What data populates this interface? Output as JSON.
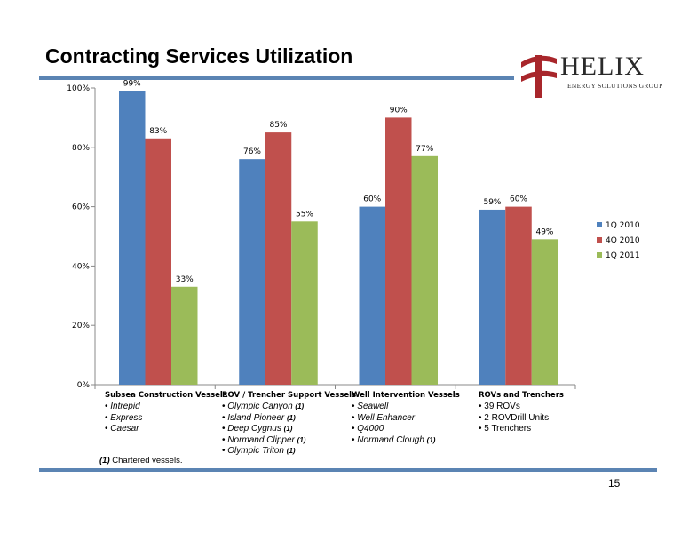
{
  "slide": {
    "title": "Contracting Services Utilization",
    "page_number": "15",
    "footnote_marker": "(1)",
    "footnote_text": "Chartered vessels.",
    "logo": {
      "word": "HELIX",
      "tagline": "ENERGY SOLUTIONS GROUP"
    }
  },
  "colors": {
    "accent_rule": "#5b84b3",
    "logo_red": "#a8262b"
  },
  "chart_data": {
    "type": "bar",
    "title": "",
    "xlabel": "",
    "ylabel": "",
    "ylim": [
      0,
      100
    ],
    "yticks": [
      "0%",
      "20%",
      "40%",
      "60%",
      "80%",
      "100%"
    ],
    "grid": false,
    "legend_position": "right",
    "categories": [
      "Subsea Construction Vessels",
      "ROV / Trencher Support Vessels",
      "Well Intervention Vessels",
      "ROVs and Trenchers"
    ],
    "series": [
      {
        "name": "1Q 2010",
        "color": "#4f81bd",
        "values": [
          99,
          76,
          60,
          59
        ],
        "labels": [
          "99%",
          "76%",
          "60%",
          "59%"
        ]
      },
      {
        "name": "4Q 2010",
        "color": "#c0504d",
        "values": [
          83,
          85,
          90,
          60
        ],
        "labels": [
          "83%",
          "85%",
          "90%",
          "60%"
        ]
      },
      {
        "name": "1Q 2011",
        "color": "#9bbb59",
        "values": [
          33,
          55,
          77,
          49
        ],
        "labels": [
          "33%",
          "55%",
          "77%",
          "49%"
        ]
      }
    ]
  },
  "categories_detail": [
    {
      "name": "Subsea Construction Vessels",
      "items": [
        {
          "text": "Intrepid",
          "italic": true,
          "note": ""
        },
        {
          "text": "Express",
          "italic": true,
          "note": ""
        },
        {
          "text": "Caesar",
          "italic": true,
          "note": ""
        }
      ]
    },
    {
      "name": "ROV / Trencher Support Vessels",
      "items": [
        {
          "text": "Olympic Canyon",
          "italic": true,
          "note": "(1)"
        },
        {
          "text": "Island Pioneer",
          "italic": true,
          "note": "(1)"
        },
        {
          "text": "Deep Cygnus",
          "italic": true,
          "note": "(1)"
        },
        {
          "text": "Normand Clipper",
          "italic": true,
          "note": "(1)"
        },
        {
          "text": "Olympic Triton",
          "italic": true,
          "note": "(1)"
        }
      ]
    },
    {
      "name": "Well Intervention Vessels",
      "items": [
        {
          "text": "Seawell",
          "italic": true,
          "note": ""
        },
        {
          "text": "Well Enhancer",
          "italic": true,
          "note": ""
        },
        {
          "text": "Q4000",
          "italic": true,
          "note": ""
        },
        {
          "text": "Normand Clough",
          "italic": true,
          "note": "(1)"
        }
      ]
    },
    {
      "name": "ROVs and Trenchers",
      "items": [
        {
          "text": "39 ROVs",
          "italic": false,
          "note": ""
        },
        {
          "text": "2 ROVDrill Units",
          "italic": false,
          "note": ""
        },
        {
          "text": "5 Trenchers",
          "italic": false,
          "note": ""
        }
      ]
    }
  ]
}
